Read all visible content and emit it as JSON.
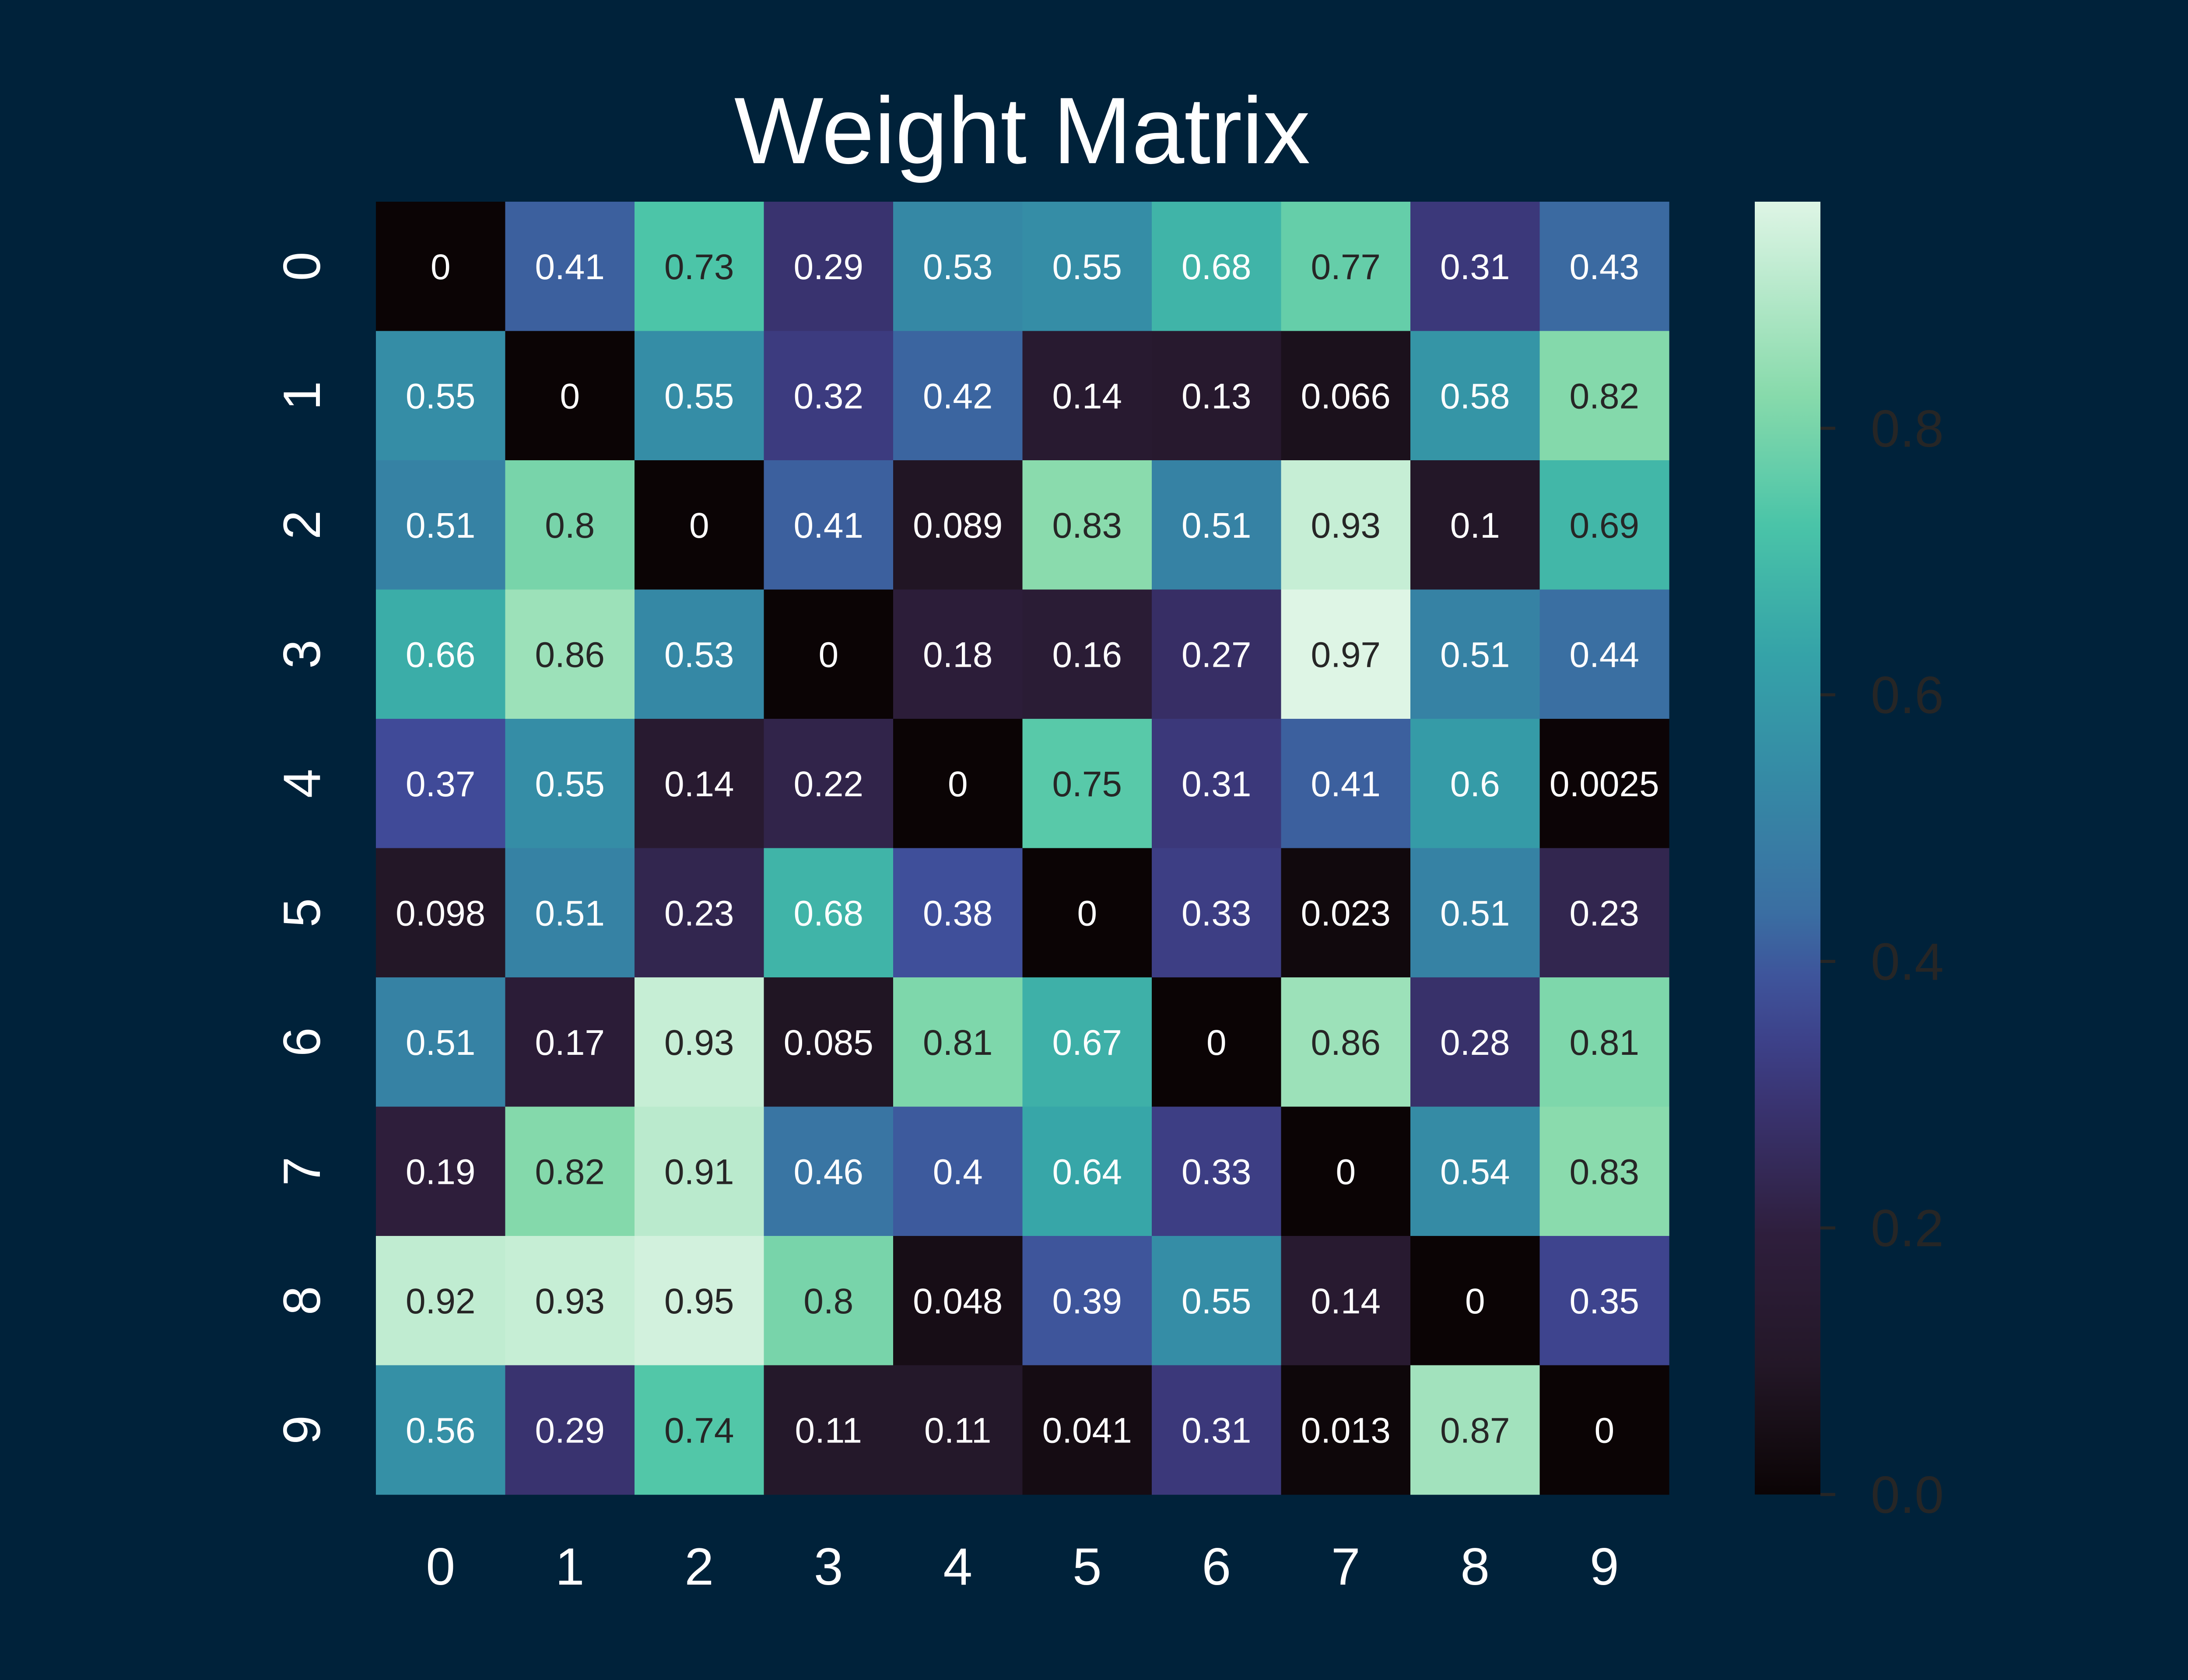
{
  "chart_data": {
    "type": "heatmap",
    "title": "Weight Matrix",
    "x_categories": [
      "0",
      "1",
      "2",
      "3",
      "4",
      "5",
      "6",
      "7",
      "8",
      "9"
    ],
    "y_categories": [
      "0",
      "1",
      "2",
      "3",
      "4",
      "5",
      "6",
      "7",
      "8",
      "9"
    ],
    "values": [
      [
        0,
        0.41,
        0.73,
        0.29,
        0.53,
        0.55,
        0.68,
        0.77,
        0.31,
        0.43
      ],
      [
        0.55,
        0,
        0.55,
        0.32,
        0.42,
        0.14,
        0.13,
        0.066,
        0.58,
        0.82
      ],
      [
        0.51,
        0.8,
        0,
        0.41,
        0.089,
        0.83,
        0.51,
        0.93,
        0.1,
        0.69
      ],
      [
        0.66,
        0.86,
        0.53,
        0,
        0.18,
        0.16,
        0.27,
        0.97,
        0.51,
        0.44
      ],
      [
        0.37,
        0.55,
        0.14,
        0.22,
        0,
        0.75,
        0.31,
        0.41,
        0.6,
        0.0025
      ],
      [
        0.098,
        0.51,
        0.23,
        0.68,
        0.38,
        0,
        0.33,
        0.023,
        0.51,
        0.23
      ],
      [
        0.51,
        0.17,
        0.93,
        0.085,
        0.81,
        0.67,
        0,
        0.86,
        0.28,
        0.81
      ],
      [
        0.19,
        0.82,
        0.91,
        0.46,
        0.4,
        0.64,
        0.33,
        0,
        0.54,
        0.83
      ],
      [
        0.92,
        0.93,
        0.95,
        0.8,
        0.048,
        0.39,
        0.55,
        0.14,
        0,
        0.35
      ],
      [
        0.56,
        0.29,
        0.74,
        0.11,
        0.11,
        0.041,
        0.31,
        0.013,
        0.87,
        0
      ]
    ],
    "colorbar": {
      "range": [
        0,
        0.97
      ],
      "ticks": [
        "0.0",
        "0.2",
        "0.4",
        "0.6",
        "0.8"
      ],
      "colormap": "mako"
    },
    "annotations": true,
    "grid": false
  },
  "colors": {
    "background": "#00223a",
    "text": "#ffffff",
    "colorbar_tick_text": "#262626"
  }
}
